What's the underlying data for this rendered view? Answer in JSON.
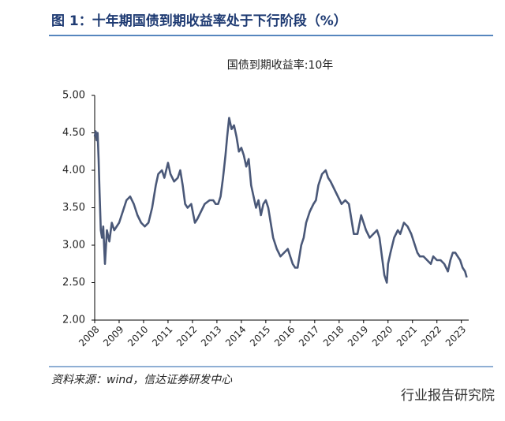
{
  "header": {
    "title": "图 1：十年期国债到期收益率处于下行阶段（%）"
  },
  "chart_data": {
    "type": "line",
    "title": "国债到期收益率:10年",
    "xlim": [
      2008,
      2023.3
    ],
    "xticks": [
      2008,
      2009,
      2010,
      2011,
      2012,
      2013,
      2014,
      2015,
      2016,
      2017,
      2018,
      2019,
      2020,
      2021,
      2022,
      2023
    ],
    "ylim": [
      2,
      5
    ],
    "yticks": [
      {
        "value": 2,
        "label": "2.00"
      },
      {
        "value": 2.5,
        "label": "2.50"
      },
      {
        "value": 3,
        "label": "3.00"
      },
      {
        "value": 3.5,
        "label": "3.50"
      },
      {
        "value": 4,
        "label": "4.00"
      },
      {
        "value": 4.5,
        "label": "4.50"
      },
      {
        "value": 5,
        "label": "5.00"
      }
    ],
    "grid": false,
    "series": [
      {
        "name": "国债到期收益率:10年",
        "color": "#4a5878",
        "x": [
          2008.0,
          2008.04,
          2008.08,
          2008.12,
          2008.16,
          2008.2,
          2008.25,
          2008.3,
          2008.35,
          2008.42,
          2008.5,
          2008.6,
          2008.7,
          2008.8,
          2009.0,
          2009.15,
          2009.3,
          2009.45,
          2009.6,
          2009.75,
          2009.9,
          2010.05,
          2010.2,
          2010.35,
          2010.5,
          2010.6,
          2010.75,
          2010.85,
          2011.0,
          2011.1,
          2011.25,
          2011.4,
          2011.5,
          2011.6,
          2011.7,
          2011.8,
          2011.95,
          2012.1,
          2012.2,
          2012.35,
          2012.5,
          2012.7,
          2012.85,
          2012.95,
          2013.05,
          2013.15,
          2013.25,
          2013.35,
          2013.42,
          2013.5,
          2013.6,
          2013.7,
          2013.8,
          2013.9,
          2014.0,
          2014.1,
          2014.2,
          2014.3,
          2014.4,
          2014.5,
          2014.6,
          2014.7,
          2014.8,
          2014.9,
          2015.0,
          2015.1,
          2015.2,
          2015.3,
          2015.45,
          2015.6,
          2015.75,
          2015.9,
          2016.0,
          2016.1,
          2016.2,
          2016.3,
          2016.45,
          2016.55,
          2016.65,
          2016.8,
          2016.95,
          2017.05,
          2017.15,
          2017.3,
          2017.45,
          2017.55,
          2017.65,
          2017.8,
          2017.95,
          2018.1,
          2018.25,
          2018.4,
          2018.5,
          2018.6,
          2018.75,
          2018.9,
          2019.0,
          2019.1,
          2019.25,
          2019.4,
          2019.55,
          2019.65,
          2019.75,
          2019.85,
          2019.95,
          2020.0,
          2020.1,
          2020.25,
          2020.4,
          2020.5,
          2020.65,
          2020.8,
          2020.95,
          2021.05,
          2021.2,
          2021.3,
          2021.45,
          2021.6,
          2021.75,
          2021.85,
          2022.0,
          2022.15,
          2022.3,
          2022.45,
          2022.55,
          2022.65,
          2022.75,
          2022.85,
          2022.95,
          2023.05,
          2023.15,
          2023.22
        ],
        "values": [
          4.45,
          4.52,
          4.4,
          4.5,
          4.15,
          3.7,
          3.2,
          3.1,
          3.25,
          2.75,
          3.2,
          3.05,
          3.3,
          3.2,
          3.3,
          3.45,
          3.6,
          3.65,
          3.55,
          3.4,
          3.3,
          3.25,
          3.3,
          3.5,
          3.8,
          3.95,
          4.0,
          3.9,
          4.1,
          3.95,
          3.85,
          3.9,
          4.0,
          3.8,
          3.55,
          3.5,
          3.55,
          3.3,
          3.35,
          3.45,
          3.55,
          3.6,
          3.6,
          3.55,
          3.55,
          3.65,
          3.9,
          4.2,
          4.45,
          4.7,
          4.55,
          4.6,
          4.45,
          4.25,
          4.3,
          4.2,
          4.05,
          4.15,
          3.8,
          3.65,
          3.5,
          3.6,
          3.4,
          3.55,
          3.6,
          3.5,
          3.3,
          3.1,
          2.95,
          2.85,
          2.9,
          2.95,
          2.85,
          2.75,
          2.7,
          2.7,
          3.0,
          3.1,
          3.3,
          3.45,
          3.55,
          3.6,
          3.8,
          3.95,
          4.0,
          3.9,
          3.85,
          3.75,
          3.65,
          3.55,
          3.6,
          3.55,
          3.35,
          3.15,
          3.15,
          3.4,
          3.3,
          3.2,
          3.1,
          3.15,
          3.2,
          3.1,
          2.85,
          2.6,
          2.5,
          2.75,
          2.9,
          3.1,
          3.2,
          3.15,
          3.3,
          3.25,
          3.15,
          3.05,
          2.9,
          2.85,
          2.85,
          2.8,
          2.75,
          2.85,
          2.8,
          2.8,
          2.75,
          2.65,
          2.8,
          2.9,
          2.9,
          2.85,
          2.8,
          2.7,
          2.65,
          2.57
        ]
      }
    ]
  },
  "source": "资料来源：wind，信达证券研发中心",
  "watermark": "行业报告研究院"
}
